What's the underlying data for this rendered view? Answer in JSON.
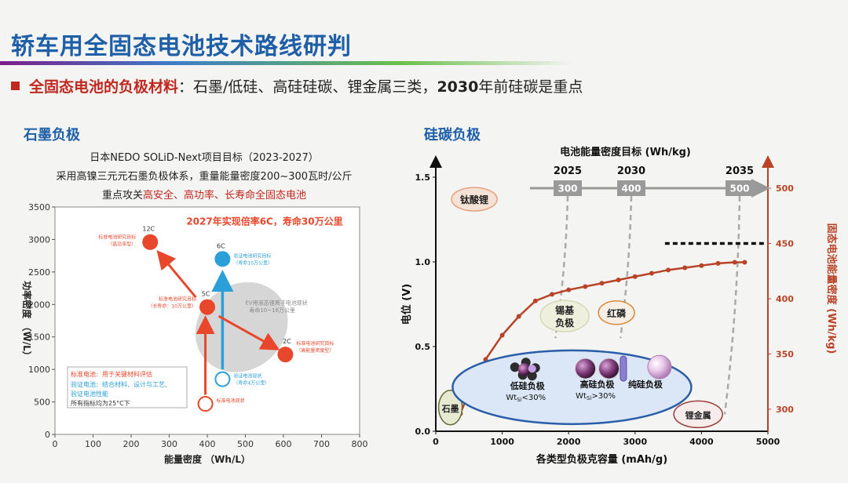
{
  "header": {
    "title": "轿车用全固态电池技术路线研判",
    "bullet_label": "全固态电池的负极材料",
    "bullet_sep": "：",
    "bullet_text": "石墨/低硅、高硅硅碳、锂金属三类，",
    "bullet_year": "2030",
    "bullet_tail": "年前硅碳是重点"
  },
  "left": {
    "section_title": "石墨负极",
    "sub1": "日本NEDO SOLiD-Next项目目标（2023-2027）",
    "sub2": "采用高镍三元元石墨负极体系，重量能量密度200~300瓦时/公斤",
    "sub3_prefix": "重点攻关",
    "sub3_highlight": "高安全、高功率、长寿命全固态电池"
  },
  "right": {
    "section_title": "硅碳负极"
  },
  "chart_data": [
    {
      "type": "scatter",
      "title": "",
      "xlabel": "能量密度 （Wh/L）",
      "ylabel": "功率密度 （W/L）",
      "xlim": [
        0,
        800
      ],
      "ylim": [
        0,
        3500
      ],
      "xticks": [
        0,
        100,
        200,
        300,
        400,
        500,
        600,
        700,
        800
      ],
      "yticks": [
        0,
        500,
        1000,
        1500,
        2000,
        2500,
        3000,
        3500
      ],
      "grid": false,
      "points": [
        {
          "name": "12C",
          "x": 250,
          "y": 2960,
          "color": "#e8472b",
          "note": "标准电池研究目标",
          "note2": "（高功率型）"
        },
        {
          "name": "6C",
          "x": 440,
          "y": 2700,
          "color": "#2a9fd8",
          "note": "验证电池研究目标",
          "note2": "（寿命10万公里）"
        },
        {
          "name": "5C",
          "x": 400,
          "y": 1960,
          "color": "#e8472b",
          "note": "标准电池研究目标",
          "note2": "（长寿命：10万公里）"
        },
        {
          "name": "2C",
          "x": 605,
          "y": 1230,
          "color": "#e8472b",
          "note": "标准电池研究目标",
          "note2": "（高能量密度型）"
        },
        {
          "name": "",
          "x": 440,
          "y": 850,
          "color": "#2a9fd8",
          "hollow": true,
          "note": "验证电池现状",
          "note2": "（寿命4万公里）"
        },
        {
          "name": "",
          "x": 395,
          "y": 470,
          "color": "#e8472b",
          "hollow": true,
          "note": "标准电池现状",
          "note2": ""
        }
      ],
      "annotations": {
        "headline": "2027年实现倍率6C，寿命30万公里",
        "ellipse_text1": "EV用液态锂离子电池现状",
        "ellipse_text2": "寿命10~16万公里"
      },
      "legend": {
        "row1_label": "标准电池:",
        "row1_text": "用于关键材料评估",
        "row2_label": "验证电池:",
        "row2_text": "结合材料、设计与工艺,",
        "row3_text": "验证电池性能",
        "row4_text": "所有指标均为25°C下"
      }
    },
    {
      "type": "line",
      "title": "电池能量密度目标 (Wh/kg)",
      "xlabel": "各类型负极克容量 (mAh/g)",
      "ylabel": "电位 (V)",
      "y2label": "固态电池能量密度 (Wh/kg)",
      "xlim": [
        0,
        5000
      ],
      "ylim": [
        0,
        1.5
      ],
      "y2lim": [
        280,
        510
      ],
      "xticks": [
        0,
        1000,
        2000,
        3000,
        4000,
        5000
      ],
      "yticks": [
        0.0,
        0.5,
        1.0,
        1.5
      ],
      "y2ticks": [
        300,
        350,
        400,
        450,
        500
      ],
      "series": [
        {
          "name": "",
          "color": "#b84326",
          "x": [
            372,
            500,
            750,
            1000,
            1250,
            1500,
            1750,
            2000,
            2250,
            2500,
            2750,
            3000,
            3250,
            3500,
            3750,
            4000,
            4250,
            4500,
            4650
          ],
          "y2": [
            296,
            316,
            345,
            367,
            384,
            398,
            404,
            408,
            411,
            414,
            417,
            420,
            423,
            426,
            428,
            430,
            432,
            433,
            433
          ]
        }
      ],
      "targets": [
        {
          "year": "2025",
          "value": "300",
          "x": 2000
        },
        {
          "year": "2030",
          "value": "400",
          "x": 3000
        },
        {
          "year": "2035",
          "value": "500",
          "x": 4550
        }
      ],
      "reference_line_y2": 450,
      "labels": {
        "titanate": "钛酸锂",
        "tin": "锡基负极",
        "red_p": "红磷",
        "graphite": "石墨",
        "lithium": "锂金属",
        "low_si": "低硅负极",
        "low_si_sub": "Wt",
        "low_si_sub2": "Si",
        "low_si_sub3": "<30%",
        "high_si": "高硅负极",
        "high_si_sub3": ">30%",
        "pure_si": "纯硅负极"
      }
    }
  ]
}
